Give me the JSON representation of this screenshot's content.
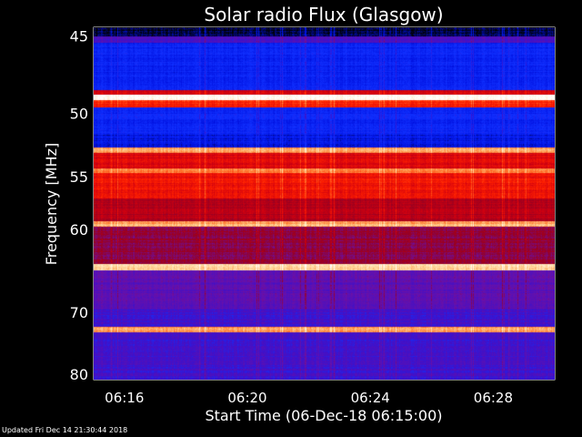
{
  "chart_data": {
    "type": "heatmap",
    "title": "Solar radio Flux (Glasgow)",
    "xlabel": "Start Time (06-Dec-18 06:15:00)",
    "ylabel": "Frequency [MHz]",
    "x_tick_labels": [
      "06:16",
      "06:20",
      "06:24",
      "06:28"
    ],
    "x_ticks_minutes": [
      1,
      5,
      9,
      13
    ],
    "xlim_minutes": [
      0,
      15
    ],
    "y_tick_labels": [
      "45",
      "50",
      "55",
      "60",
      "70",
      "80"
    ],
    "y_ticks": [
      45,
      50,
      55,
      60,
      70,
      80
    ],
    "ylim": [
      44.5,
      81
    ],
    "y_scale": "reciprocal",
    "colormap": [
      "#000000",
      "#0010e0",
      "#1030ff",
      "#4010c8",
      "#6a10a8",
      "#980020",
      "#d00010",
      "#ff2000",
      "#ff7a30",
      "#ffd89a",
      "#ffffff"
    ],
    "frequency_profile": [
      {
        "from": 44.5,
        "to": 45.0,
        "level": 0.03
      },
      {
        "from": 45.0,
        "to": 45.4,
        "level": 0.32
      },
      {
        "from": 45.4,
        "to": 48.4,
        "level": 0.16
      },
      {
        "from": 48.4,
        "to": 48.7,
        "level": 0.6
      },
      {
        "from": 48.7,
        "to": 49.1,
        "level": 1.0
      },
      {
        "from": 49.1,
        "to": 49.6,
        "level": 0.7
      },
      {
        "from": 49.6,
        "to": 51.6,
        "level": 0.17
      },
      {
        "from": 51.6,
        "to": 52.6,
        "level": 0.12
      },
      {
        "from": 52.6,
        "to": 53.0,
        "level": 0.84
      },
      {
        "from": 53.0,
        "to": 54.3,
        "level": 0.62
      },
      {
        "from": 54.3,
        "to": 54.7,
        "level": 0.8
      },
      {
        "from": 54.7,
        "to": 57.0,
        "level": 0.66
      },
      {
        "from": 57.0,
        "to": 59.2,
        "level": 0.55
      },
      {
        "from": 59.2,
        "to": 59.7,
        "level": 0.86
      },
      {
        "from": 59.7,
        "to": 63.8,
        "level": 0.48
      },
      {
        "from": 63.8,
        "to": 64.6,
        "level": 0.9
      },
      {
        "from": 64.6,
        "to": 69.5,
        "level": 0.36
      },
      {
        "from": 69.5,
        "to": 72.1,
        "level": 0.3
      },
      {
        "from": 72.1,
        "to": 72.9,
        "level": 0.84
      },
      {
        "from": 72.9,
        "to": 81.0,
        "level": 0.3
      }
    ],
    "footer": "Updated Fri Dec 14 21:30:44 2018"
  }
}
